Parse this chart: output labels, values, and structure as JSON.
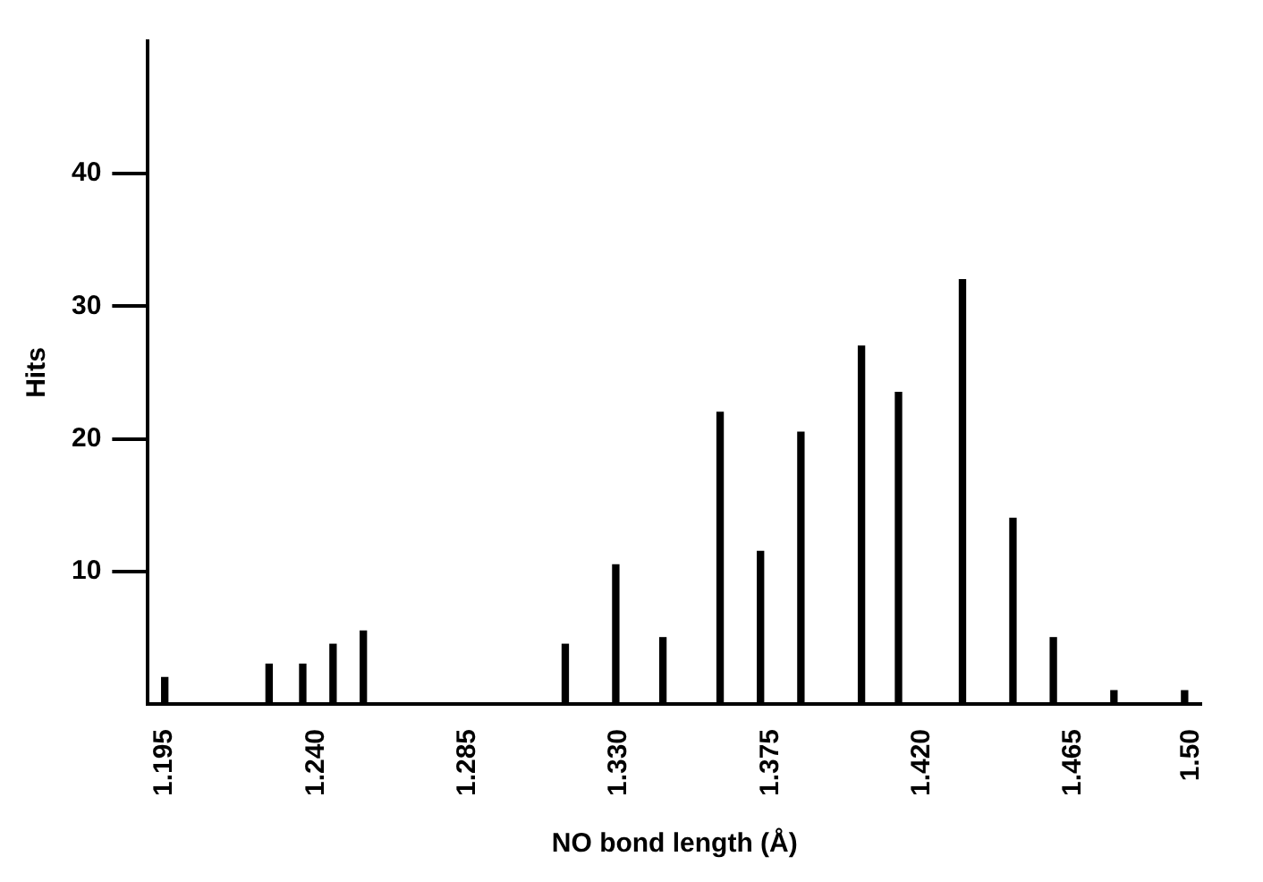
{
  "chart_data": {
    "type": "bar",
    "xlabel": "NO bond length (Å)",
    "ylabel": "Hits",
    "x": [
      1.195,
      1.226,
      1.236,
      1.245,
      1.254,
      1.314,
      1.329,
      1.343,
      1.36,
      1.372,
      1.384,
      1.402,
      1.413,
      1.432,
      1.447,
      1.459,
      1.477,
      1.498
    ],
    "values": [
      2,
      3,
      3,
      4.5,
      5.5,
      4.5,
      10.5,
      5,
      22,
      11.5,
      20.5,
      27,
      23.5,
      32,
      14,
      5,
      1,
      1
    ],
    "color": "#000000",
    "xlim": [
      1.19,
      1.503
    ],
    "xticks": [
      1.195,
      {
        "value": 1.24,
        "label": "1.240"
      },
      1.285,
      {
        "value": 1.33,
        "label": "1.330"
      },
      1.375,
      {
        "value": 1.42,
        "label": "1.420"
      },
      1.465,
      {
        "value": 1.5,
        "label": "1.50"
      }
    ],
    "ylim": [
      0,
      50
    ],
    "yticks": [
      10,
      20,
      30,
      40
    ],
    "grid": false,
    "legend": false
  }
}
